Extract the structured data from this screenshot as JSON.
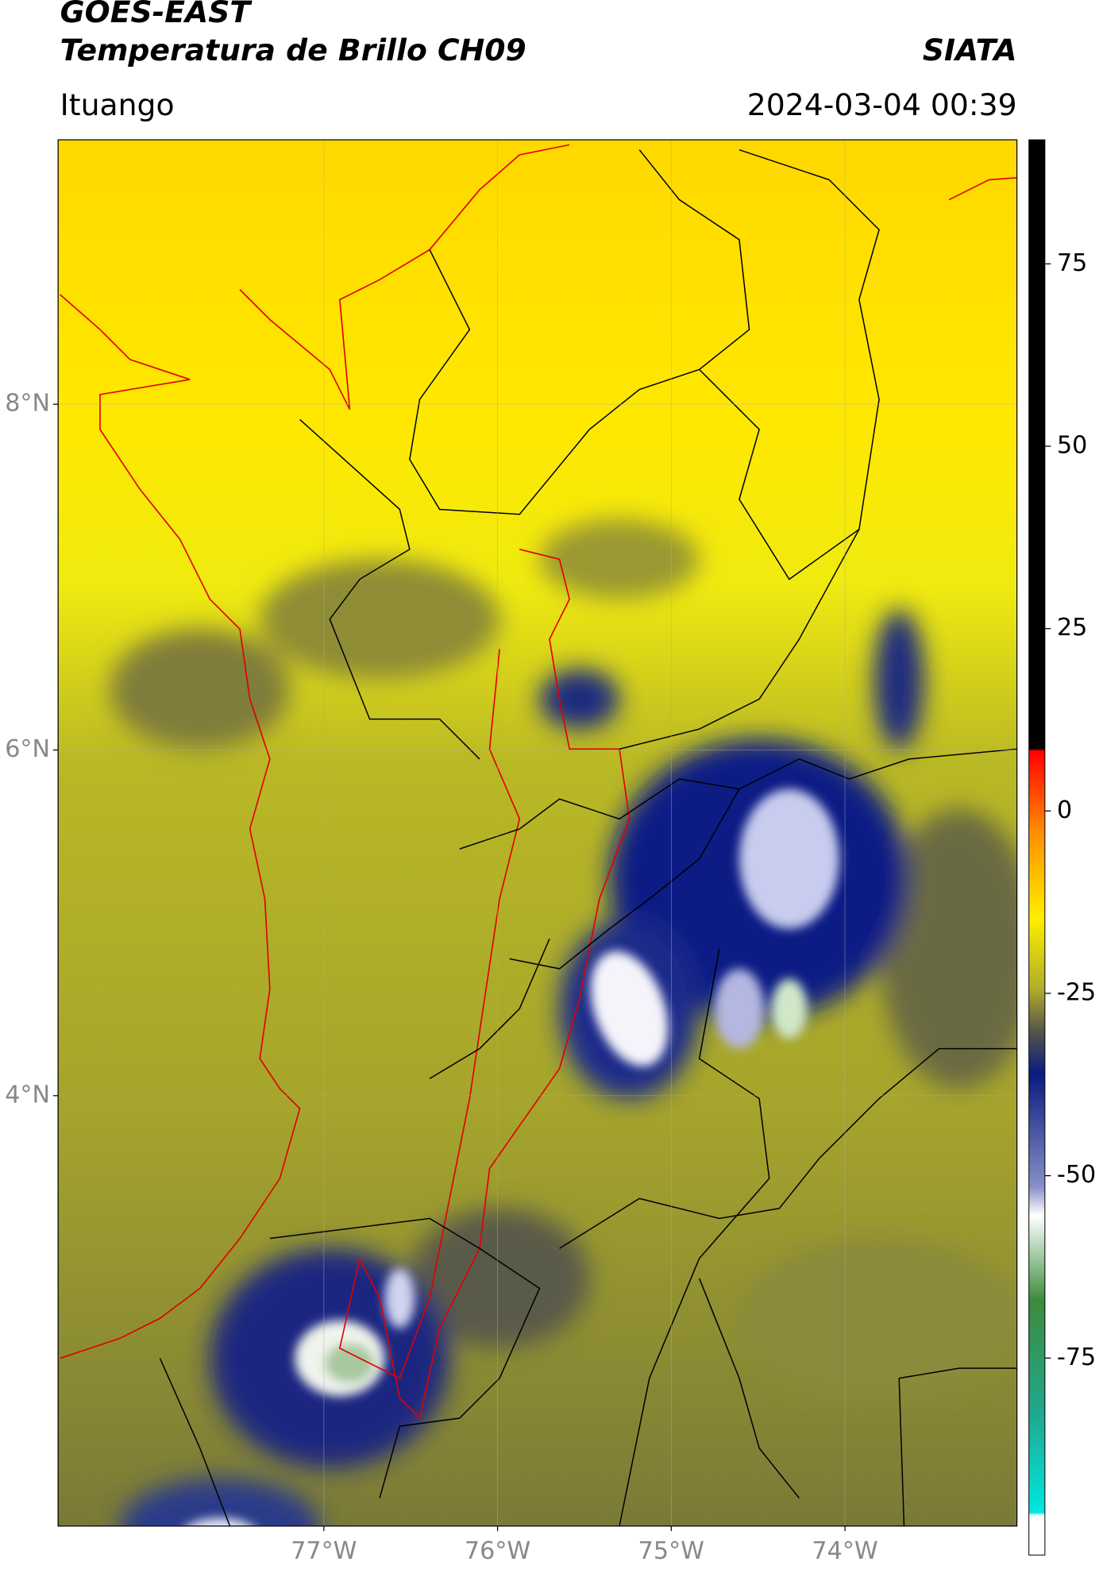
{
  "header": {
    "title_line1": "GOES-EAST",
    "title_line2": "Temperatura de Brillo CH09",
    "brand": "SIATA",
    "location": "Ituango",
    "datetime": "2024-03-04 00:39"
  },
  "map": {
    "xlim": [
      -78.53,
      -73.01
    ],
    "ylim": [
      1.51,
      9.53
    ],
    "xticks": [
      {
        "value": -77,
        "label": "77°W"
      },
      {
        "value": -76,
        "label": "76°W"
      },
      {
        "value": -75,
        "label": "75°W"
      },
      {
        "value": -74,
        "label": "74°W"
      }
    ],
    "yticks": [
      {
        "value": 8,
        "label": "8°N"
      },
      {
        "value": 6,
        "label": "6°N"
      },
      {
        "value": 4,
        "label": "4°N"
      }
    ],
    "grid": true
  },
  "colorbar": {
    "lim": [
      -102,
      92
    ],
    "ticks": [
      75,
      50,
      25,
      0,
      -25,
      -50,
      -75
    ]
  }
}
